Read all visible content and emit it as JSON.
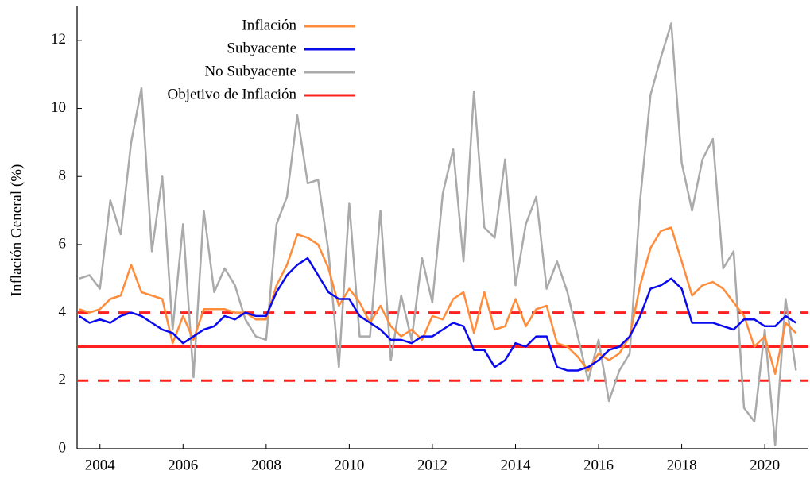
{
  "chart_data": {
    "type": "line",
    "y_label": "Inflación General (%)",
    "xlim": [
      2003.45,
      2021.05
    ],
    "ylim": [
      0,
      13
    ],
    "xticks": [
      2004,
      2006,
      2008,
      2010,
      2012,
      2014,
      2016,
      2018,
      2020
    ],
    "yticks": [
      0,
      2,
      4,
      6,
      8,
      10,
      12
    ],
    "legend": "upper-left",
    "x": [
      2003.5,
      2003.75,
      2004,
      2004.25,
      2004.5,
      2004.75,
      2005,
      2005.25,
      2005.5,
      2005.75,
      2006,
      2006.25,
      2006.5,
      2006.75,
      2007,
      2007.25,
      2007.5,
      2007.75,
      2008,
      2008.25,
      2008.5,
      2008.75,
      2009,
      2009.25,
      2009.5,
      2009.75,
      2010,
      2010.25,
      2010.5,
      2010.75,
      2011,
      2011.25,
      2011.5,
      2011.75,
      2012,
      2012.25,
      2012.5,
      2012.75,
      2013,
      2013.25,
      2013.5,
      2013.75,
      2014,
      2014.25,
      2014.5,
      2014.75,
      2015,
      2015.25,
      2015.5,
      2015.75,
      2016,
      2016.25,
      2016.5,
      2016.75,
      2017,
      2017.25,
      2017.5,
      2017.75,
      2018,
      2018.25,
      2018.5,
      2018.75,
      2019,
      2019.25,
      2019.5,
      2019.75,
      2020,
      2020.25,
      2020.5,
      2020.75
    ],
    "series": [
      {
        "name": "Inflación",
        "color": "#ff8c3a",
        "values": [
          4.1,
          4.0,
          4.1,
          4.4,
          4.5,
          5.4,
          4.6,
          4.5,
          4.4,
          3.1,
          3.9,
          3.2,
          4.1,
          4.1,
          4.1,
          4.0,
          4.0,
          3.8,
          3.8,
          4.8,
          5.4,
          6.3,
          6.2,
          6.0,
          5.3,
          4.2,
          4.7,
          4.3,
          3.7,
          4.2,
          3.6,
          3.3,
          3.5,
          3.2,
          3.9,
          3.8,
          4.4,
          4.6,
          3.4,
          4.6,
          3.5,
          3.6,
          4.4,
          3.6,
          4.1,
          4.2,
          3.1,
          3.0,
          2.7,
          2.3,
          2.8,
          2.6,
          2.8,
          3.3,
          4.8,
          5.9,
          6.4,
          6.5,
          5.5,
          4.5,
          4.8,
          4.9,
          4.7,
          4.3,
          3.9,
          3.0,
          3.3,
          2.2,
          3.7,
          3.4
        ]
      },
      {
        "name": "Subyacente",
        "color": "#0a0aee",
        "values": [
          3.9,
          3.7,
          3.8,
          3.7,
          3.9,
          4.0,
          3.9,
          3.7,
          3.5,
          3.4,
          3.1,
          3.3,
          3.5,
          3.6,
          3.9,
          3.8,
          4.0,
          3.9,
          3.9,
          4.6,
          5.1,
          5.4,
          5.6,
          5.1,
          4.6,
          4.4,
          4.4,
          3.9,
          3.7,
          3.5,
          3.2,
          3.2,
          3.1,
          3.3,
          3.3,
          3.5,
          3.7,
          3.6,
          2.9,
          2.9,
          2.4,
          2.6,
          3.1,
          3.0,
          3.3,
          3.3,
          2.4,
          2.3,
          2.3,
          2.4,
          2.6,
          2.9,
          3.0,
          3.3,
          3.9,
          4.7,
          4.8,
          5.0,
          4.7,
          3.7,
          3.7,
          3.7,
          3.6,
          3.5,
          3.8,
          3.8,
          3.6,
          3.6,
          3.9,
          3.7
        ]
      },
      {
        "name": "No Subyacente",
        "color": "#aaaaaa",
        "values": [
          5.0,
          5.1,
          4.7,
          7.3,
          6.3,
          9.0,
          10.6,
          5.8,
          8.0,
          3.5,
          6.6,
          2.1,
          7.0,
          4.6,
          5.3,
          4.8,
          3.8,
          3.3,
          3.2,
          6.6,
          7.4,
          9.8,
          7.8,
          7.9,
          5.8,
          2.4,
          7.2,
          3.3,
          3.3,
          7.0,
          2.6,
          4.5,
          3.2,
          5.6,
          4.3,
          7.5,
          8.8,
          5.5,
          10.5,
          6.5,
          6.2,
          8.5,
          4.8,
          6.6,
          7.4,
          4.7,
          5.5,
          4.6,
          3.3,
          2.0,
          3.2,
          1.4,
          2.3,
          2.8,
          7.3,
          10.4,
          11.5,
          12.5,
          8.4,
          7.0,
          8.5,
          9.1,
          5.3,
          5.8,
          1.2,
          0.8,
          3.5,
          0.1,
          4.4,
          2.3
        ]
      }
    ],
    "target": {
      "name": "Objetivo de Inflación",
      "color": "#ff2020",
      "value": 3
    },
    "band": [
      2,
      4
    ],
    "band_color": "#ff2020"
  }
}
